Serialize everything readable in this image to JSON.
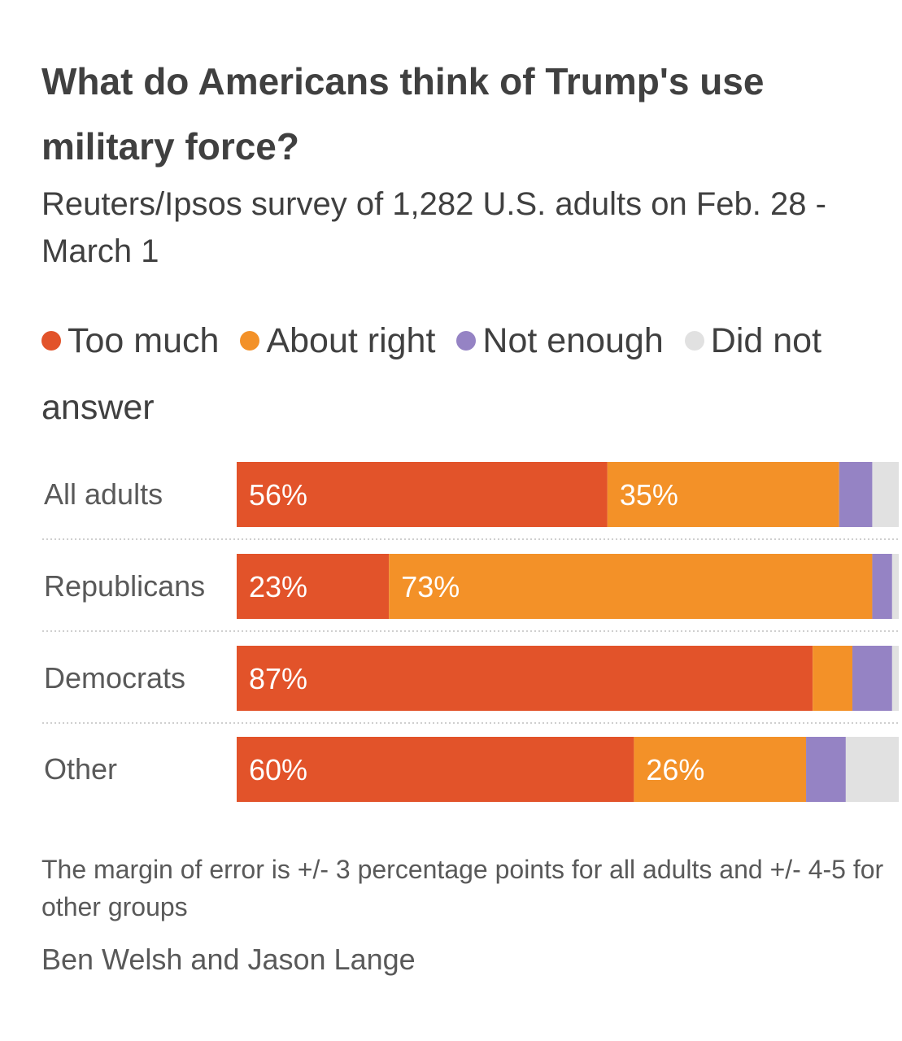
{
  "chart_data": {
    "type": "bar",
    "orientation": "horizontal-stacked",
    "title": "What do Americans think of Trump's use military force?",
    "subtitle": "Reuters/Ipsos survey of 1,282 U.S. adults on Feb. 28 - March 1",
    "legend": [
      "Too much",
      "About right",
      "Not enough",
      "Did not answer"
    ],
    "categories": [
      "All adults",
      "Republicans",
      "Democrats",
      "Other"
    ],
    "series": [
      {
        "name": "Too much",
        "color": "#e2532a",
        "values": [
          56,
          23,
          87,
          60
        ]
      },
      {
        "name": "About right",
        "color": "#f39128",
        "values": [
          35,
          73,
          6,
          26
        ]
      },
      {
        "name": "Not enough",
        "color": "#9583c4",
        "values": [
          5,
          3,
          6,
          6
        ]
      },
      {
        "name": "Did not answer",
        "color": "#e1e1e1",
        "values": [
          4,
          1,
          1,
          8
        ]
      }
    ],
    "data_labels": [
      [
        "56%",
        "35%",
        "",
        ""
      ],
      [
        "23%",
        "73%",
        "",
        ""
      ],
      [
        "87%",
        "",
        "",
        ""
      ],
      [
        "60%",
        "26%",
        "",
        ""
      ]
    ],
    "xlim": [
      0,
      100
    ]
  },
  "footnote": "The margin of error is +/- 3 percentage points for all adults and +/- 4-5 for other groups",
  "byline": "Ben Welsh and Jason Lange"
}
